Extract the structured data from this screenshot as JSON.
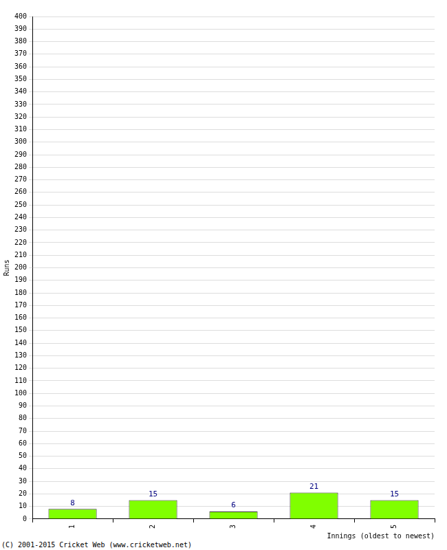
{
  "chart_data": {
    "type": "bar",
    "categories": [
      "1",
      "2",
      "3",
      "4",
      "5"
    ],
    "values": [
      8,
      15,
      6,
      21,
      15
    ],
    "color": "#80ff00",
    "y_label": "Runs",
    "x_label": "Innings (oldest to newest)",
    "annotations": [
      "(C) 2001-2015 Cricket Web (www.cricketweb.net)"
    ],
    "ylim": [
      0,
      400
    ],
    "yticks": [
      0,
      10,
      20,
      30,
      40,
      50,
      60,
      70,
      80,
      90,
      100,
      110,
      120,
      130,
      140,
      150,
      160,
      170,
      180,
      190,
      200,
      210,
      220,
      230,
      240,
      250,
      260,
      270,
      280,
      290,
      300,
      310,
      320,
      330,
      340,
      350,
      360,
      370,
      380,
      390,
      400
    ],
    "grid": true,
    "data_labels": true
  }
}
